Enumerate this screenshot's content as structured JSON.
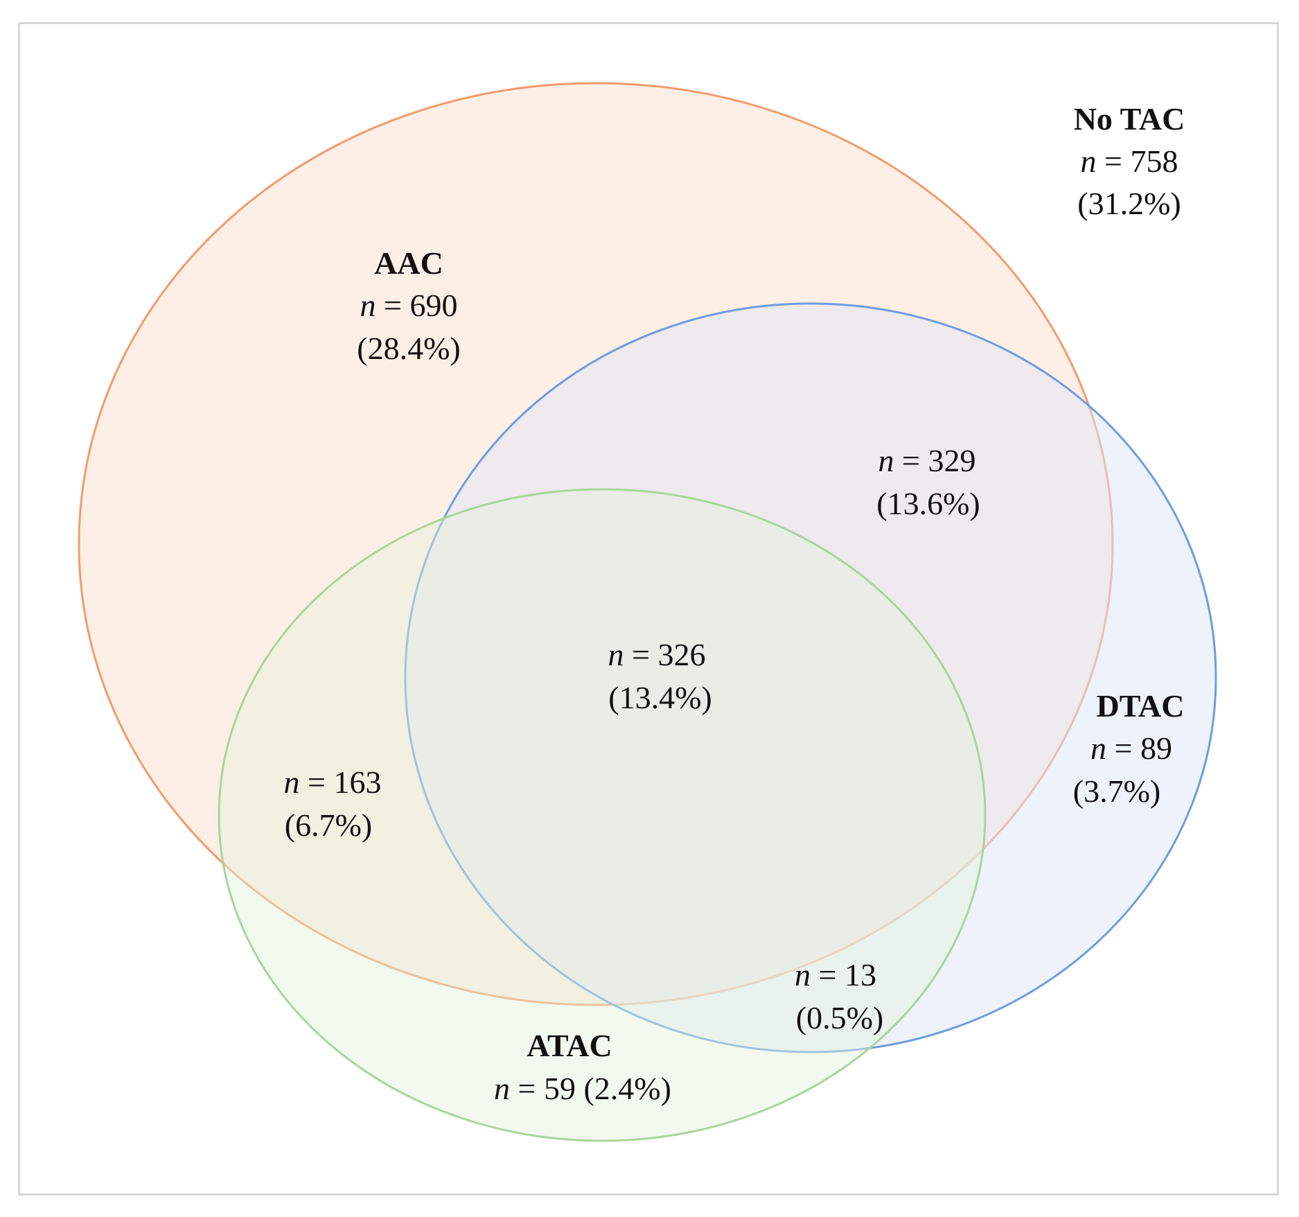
{
  "diagram_type": "venn",
  "colors": {
    "aac_stroke": "#f39a6c",
    "aac_fill": "#fde9dc",
    "dtac_stroke": "#6f9cdf",
    "dtac_fill": "#dde6f6",
    "atac_stroke": "#a9d59c",
    "atac_fill": "#e2f1dc",
    "frame": "#d6d6d6",
    "text": "#111111"
  },
  "sets": {
    "no_tac": {
      "name": "No TAC",
      "n_label": "n",
      "n_value": "= 758",
      "pct": "(31.2%)"
    },
    "aac": {
      "name": "AAC",
      "n_label": "n",
      "n_value": "= 690",
      "pct": "(28.4%)"
    },
    "dtac": {
      "name": "DTAC",
      "n_label": "n",
      "n_value": "= 89",
      "pct": "(3.7%)"
    },
    "atac": {
      "name": "ATAC",
      "n_label": "n",
      "n_value": "= 59 (2.4%)"
    }
  },
  "intersections": {
    "aac_dtac": {
      "n_label": "n",
      "n_value": "= 329",
      "pct": "(13.6%)"
    },
    "all_three": {
      "n_label": "n",
      "n_value": "= 326",
      "pct": "(13.4%)"
    },
    "aac_atac": {
      "n_label": "n",
      "n_value": "= 163",
      "pct": "(6.7%)"
    },
    "dtac_atac": {
      "n_label": "n",
      "n_value": "= 13",
      "pct": "(0.5%)"
    }
  }
}
